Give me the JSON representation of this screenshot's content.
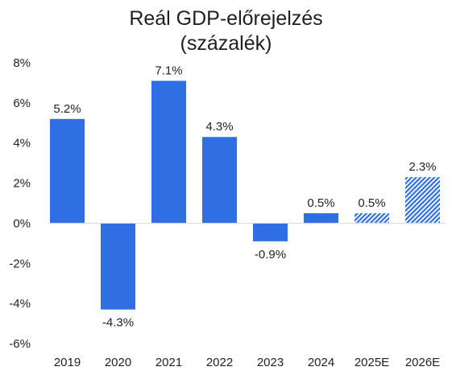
{
  "chart_data": {
    "type": "bar",
    "title_line1": "Reál GDP-előrejelzés",
    "title_line2": "(százalék)",
    "xlabel": "",
    "ylabel": "",
    "ylim": [
      -6,
      8
    ],
    "yticks": [
      8,
      6,
      4,
      2,
      0,
      -2,
      -4,
      -6
    ],
    "ytick_suffix": "%",
    "categories": [
      "2019",
      "2020",
      "2021",
      "2022",
      "2023",
      "2024",
      "2025E",
      "2026E"
    ],
    "values": [
      5.2,
      -4.3,
      7.1,
      4.3,
      -0.9,
      0.5,
      0.5,
      2.3
    ],
    "value_labels": [
      "5.2%",
      "-4.3%",
      "7.1%",
      "4.3%",
      "-0.9%",
      "0.5%",
      "0.5%",
      "2.3%"
    ],
    "estimate": [
      false,
      false,
      false,
      false,
      false,
      false,
      true,
      true
    ],
    "grid": false,
    "legend": "none",
    "colors": {
      "bar": "#2f6fe3",
      "baseline": "#d9d9d9"
    }
  }
}
